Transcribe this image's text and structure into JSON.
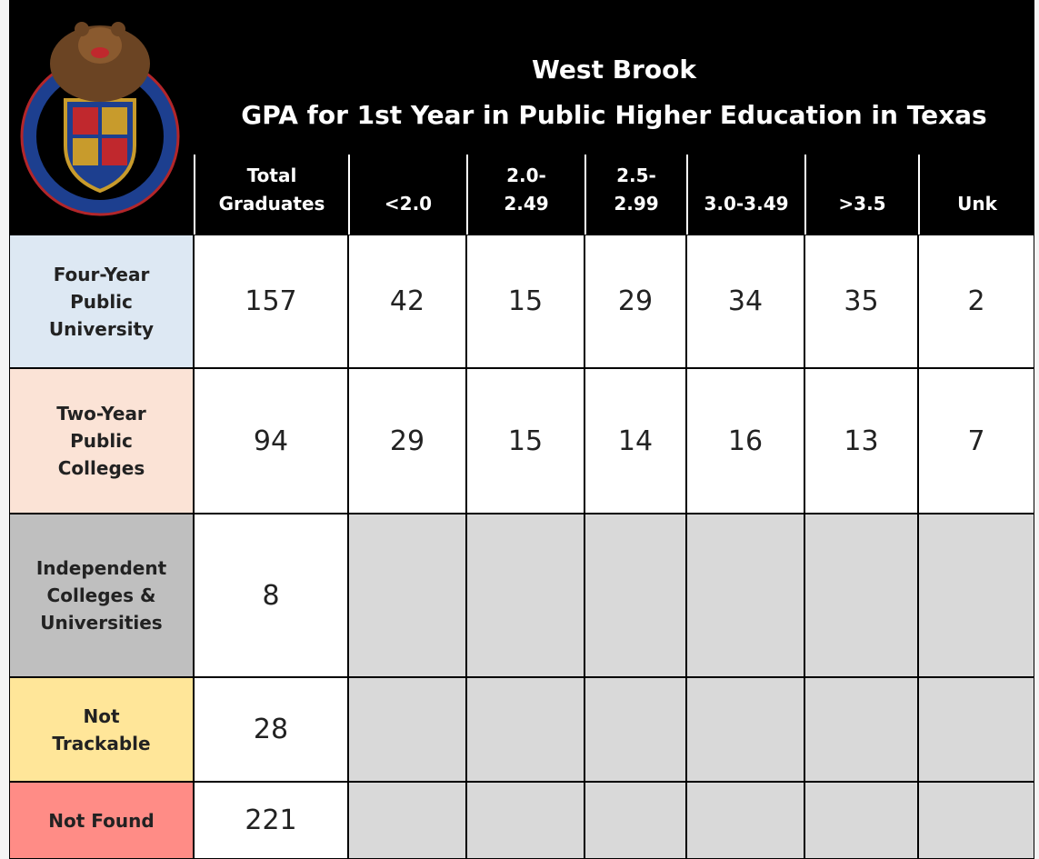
{
  "header": {
    "title": "West Brook",
    "subtitle": "GPA for 1st Year in Public Higher Education in Texas"
  },
  "table": {
    "columns": [
      "Total\nGraduates",
      "<2.0",
      "2.0-\n2.49",
      "2.5-\n2.99",
      "3.0-3.49",
      ">3.5",
      "Unk"
    ],
    "rows": [
      {
        "label": "Four-Year\nPublic\nUniversity",
        "values": [
          157,
          42,
          15,
          29,
          34,
          35,
          2
        ]
      },
      {
        "label": "Two-Year\nPublic\nColleges",
        "values": [
          94,
          29,
          15,
          14,
          16,
          13,
          7
        ]
      },
      {
        "label": "Independent\nColleges &\nUniversities",
        "values": [
          8
        ]
      },
      {
        "label": "Not\nTrackable",
        "values": [
          28
        ]
      },
      {
        "label": "Not Found",
        "values": [
          221
        ]
      }
    ]
  }
}
